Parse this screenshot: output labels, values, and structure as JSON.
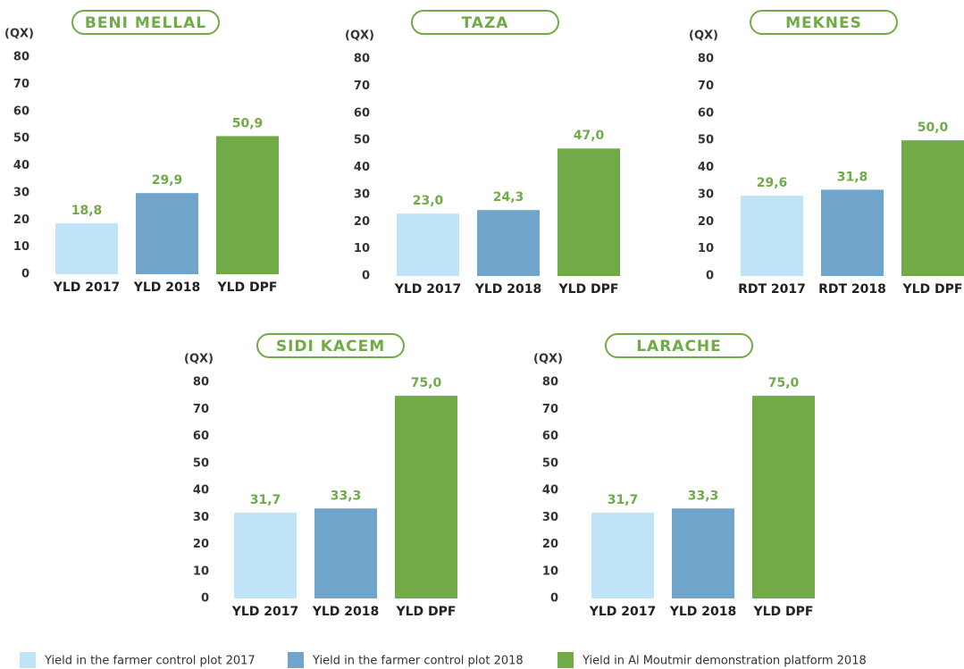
{
  "legend": [
    {
      "name": "Yield in the farmer control plot 2017",
      "color": "#bfe4f8"
    },
    {
      "name": "Yield in the farmer control plot 2018",
      "color": "#70a4ca"
    },
    {
      "name": "Yield in Al Moutmir demonstration platform 2018",
      "color": "#71ab47"
    }
  ],
  "chart_data": [
    {
      "type": "bar",
      "title": "BENI MELLAL",
      "y_label": "(QX)",
      "categories": [
        "YLD 2017",
        "YLD 2018",
        "YLD DPF"
      ],
      "values": [
        18.8,
        29.9,
        50.9
      ],
      "value_labels": [
        "18,8",
        "29,9",
        "50,9"
      ],
      "ylim": [
        0,
        80
      ],
      "yticks": [
        0,
        10,
        20,
        30,
        40,
        50,
        60,
        70,
        80
      ]
    },
    {
      "type": "bar",
      "title": "TAZA",
      "y_label": "(QX)",
      "categories": [
        "YLD 2017",
        "YLD 2018",
        "YLD DPF"
      ],
      "values": [
        23.0,
        24.3,
        47.0
      ],
      "value_labels": [
        "23,0",
        "24,3",
        "47,0"
      ],
      "ylim": [
        0,
        80
      ],
      "yticks": [
        0,
        10,
        20,
        30,
        40,
        50,
        60,
        70,
        80
      ]
    },
    {
      "type": "bar",
      "title": "MEKNES",
      "y_label": "(QX)",
      "categories": [
        "RDT 2017",
        "RDT 2018",
        "YLD DPF"
      ],
      "values": [
        29.6,
        31.8,
        50.0
      ],
      "value_labels": [
        "29,6",
        "31,8",
        "50,0"
      ],
      "ylim": [
        0,
        80
      ],
      "yticks": [
        0,
        10,
        20,
        30,
        40,
        50,
        60,
        70,
        80
      ]
    },
    {
      "type": "bar",
      "title": "SIDI KACEM",
      "y_label": "(QX)",
      "categories": [
        "YLD 2017",
        "YLD 2018",
        "YLD DPF"
      ],
      "values": [
        31.7,
        33.3,
        75.0
      ],
      "value_labels": [
        "31,7",
        "33,3",
        "75,0"
      ],
      "ylim": [
        0,
        80
      ],
      "yticks": [
        0,
        10,
        20,
        30,
        40,
        50,
        60,
        70,
        80
      ]
    },
    {
      "type": "bar",
      "title": "LARACHE",
      "y_label": "(QX)",
      "categories": [
        "YLD 2017",
        "YLD 2018",
        "YLD DPF"
      ],
      "values": [
        31.7,
        33.3,
        75.0
      ],
      "value_labels": [
        "31,7",
        "33,3",
        "75,0"
      ],
      "ylim": [
        0,
        80
      ],
      "yticks": [
        0,
        10,
        20,
        30,
        40,
        50,
        60,
        70,
        80
      ]
    }
  ]
}
